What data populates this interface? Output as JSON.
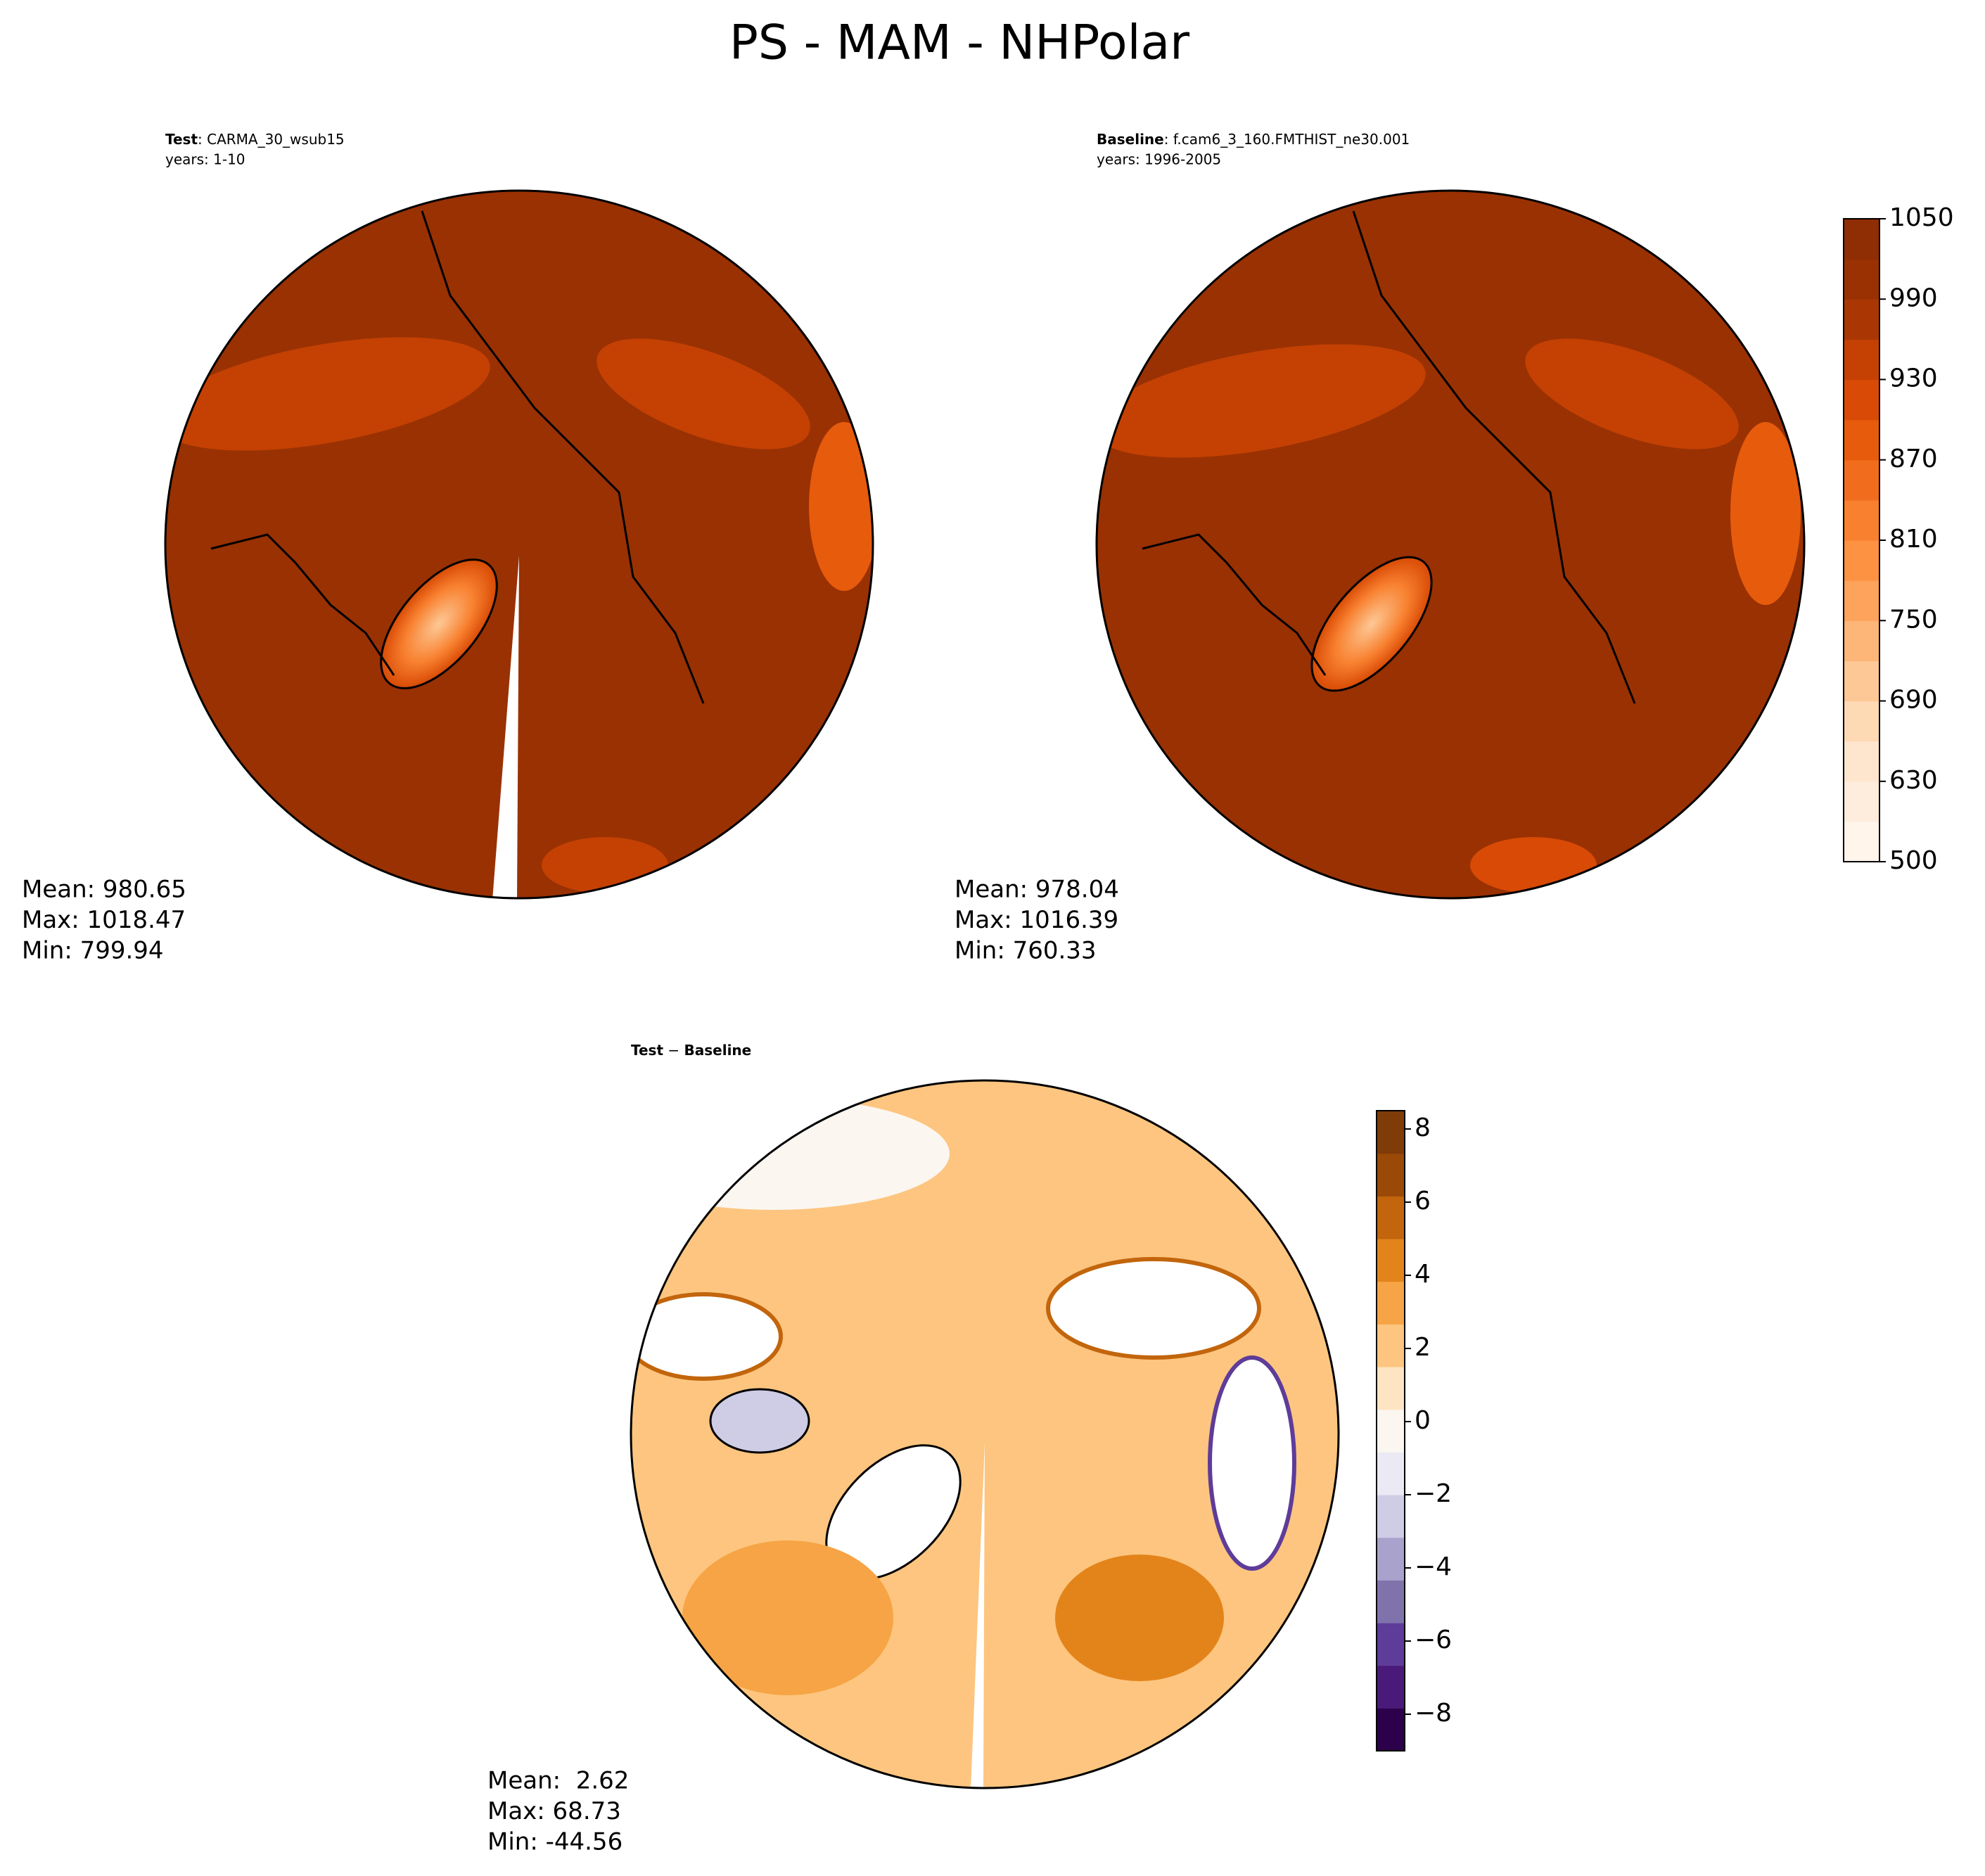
{
  "title": "PS - MAM - NHPolar",
  "chart_data": [
    {
      "type": "polar-map",
      "label_bold": "Test",
      "label": ": CARMA_30_wsub15",
      "subtitle": "years: 1-10",
      "stats": [
        "Mean: 980.65",
        "Max: 1018.47",
        "Min: 799.94"
      ]
    },
    {
      "type": "polar-map",
      "label_bold": "Baseline",
      "label": ": f.cam6_3_160.FMTHIST_ne30.001",
      "subtitle": "years: 1996-2005",
      "stats": [
        "Mean: 978.04",
        "Max: 1016.39",
        "Min: 760.33"
      ],
      "colorbar": {
        "scale": "tick-index",
        "ylim": [
          500,
          1050
        ],
        "yticks": [
          500,
          630,
          690,
          750,
          810,
          870,
          930,
          990,
          1050
        ],
        "colors": [
          "#fff5eb",
          "#feeddc",
          "#fee6ce",
          "#fdd9b4",
          "#fdc895",
          "#fdb678",
          "#fda35c",
          "#fd9243",
          "#f8802f",
          "#f16d1d",
          "#e75b0c",
          "#d84a05",
          "#c44103",
          "#aa3703",
          "#993103",
          "#8f2d04"
        ]
      }
    },
    {
      "type": "polar-map",
      "label_bold": "Test",
      "label": " − ",
      "label_bold2": "Baseline",
      "stats": [
        "Mean:  2.62",
        "Max: 68.73",
        "Min: -44.56"
      ],
      "colorbar": {
        "scale": "linear",
        "ylim": [
          -9,
          8.5
        ],
        "yticks": [
          {
            "value": -8,
            "label": "−8"
          },
          {
            "value": -6,
            "label": "−6"
          },
          {
            "value": -4,
            "label": "−4"
          },
          {
            "value": -2,
            "label": "−2"
          },
          0,
          2,
          4,
          6,
          8
        ],
        "colors": [
          "#2d004b",
          "#4a1a7a",
          "#5e3c99",
          "#8073ac",
          "#a9a2cc",
          "#cfcce5",
          "#ebe9f3",
          "#fbf6f0",
          "#fde4c2",
          "#fdc57f",
          "#f6a445",
          "#e3841b",
          "#c2650c",
          "#9a4a06",
          "#7f3b08"
        ]
      }
    }
  ]
}
